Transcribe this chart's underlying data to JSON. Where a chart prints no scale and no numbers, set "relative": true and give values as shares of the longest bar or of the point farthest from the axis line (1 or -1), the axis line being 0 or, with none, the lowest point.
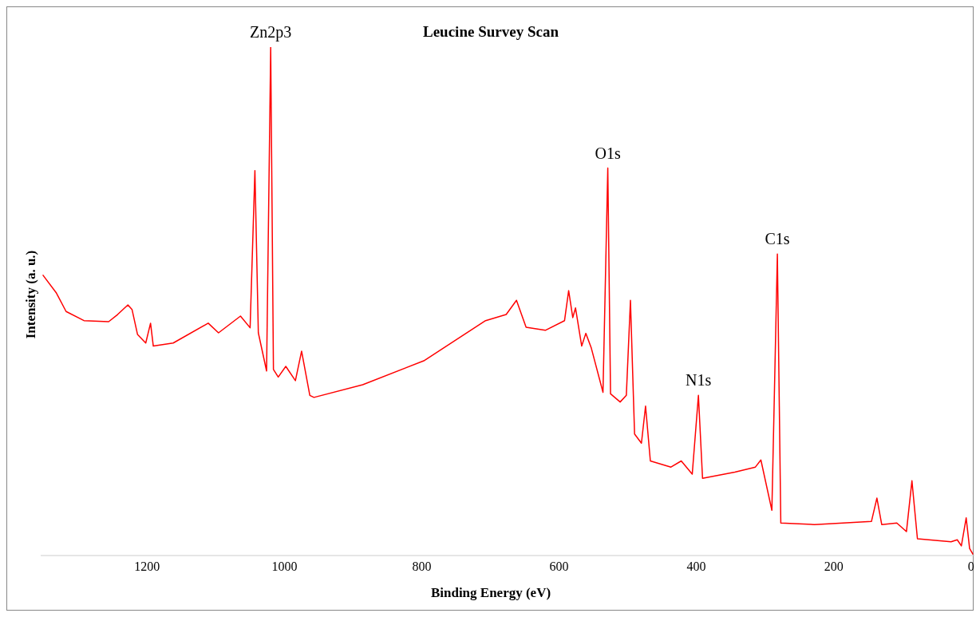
{
  "chart_data": {
    "type": "line",
    "title": "Leucine Survey Scan",
    "xlabel": "Binding Energy (eV)",
    "ylabel": "Intensity (a. u.)",
    "relative": true,
    "xlim": [
      1355,
      -5
    ],
    "xticks": [
      1200,
      1000,
      800,
      600,
      400,
      200,
      0
    ],
    "series": [
      {
        "color": "#ff0000",
        "x": [
          1352,
          1332,
          1318,
          1292,
          1256,
          1243,
          1228,
          1222,
          1214,
          1202,
          1195,
          1191,
          1162,
          1111,
          1096,
          1064,
          1050,
          1043,
          1038,
          1026,
          1020,
          1016,
          1009,
          998,
          984,
          975,
          963,
          957,
          886,
          797,
          707,
          677,
          662,
          648,
          620,
          592,
          586,
          580,
          576,
          567,
          561,
          553,
          536,
          529,
          525,
          511,
          502,
          496,
          490,
          480,
          474,
          467,
          437,
          422,
          406,
          397,
          391,
          344,
          314,
          306,
          290,
          282,
          277,
          228,
          145,
          137,
          130,
          108,
          94,
          86,
          78,
          29,
          20,
          14,
          7,
          2,
          -3
        ],
        "values": [
          0.552,
          0.516,
          0.48,
          0.462,
          0.46,
          0.474,
          0.493,
          0.484,
          0.435,
          0.418,
          0.457,
          0.412,
          0.418,
          0.457,
          0.438,
          0.471,
          0.448,
          0.757,
          0.438,
          0.363,
          1,
          0.366,
          0.351,
          0.372,
          0.344,
          0.402,
          0.315,
          0.311,
          0.336,
          0.383,
          0.462,
          0.474,
          0.502,
          0.449,
          0.443,
          0.462,
          0.521,
          0.468,
          0.487,
          0.412,
          0.437,
          0.408,
          0.321,
          0.762,
          0.318,
          0.302,
          0.315,
          0.502,
          0.239,
          0.221,
          0.294,
          0.186,
          0.174,
          0.186,
          0.16,
          0.315,
          0.152,
          0.164,
          0.174,
          0.188,
          0.089,
          0.593,
          0.064,
          0.061,
          0.067,
          0.113,
          0.061,
          0.064,
          0.047,
          0.147,
          0.033,
          0.027,
          0.031,
          0.019,
          0.074,
          0.014,
          0.002
        ]
      }
    ],
    "annotations": [
      {
        "text": "Zn2p3",
        "x": 1020,
        "y": 1
      },
      {
        "text": "O1s",
        "x": 529,
        "y": 0.762
      },
      {
        "text": "N1s",
        "x": 397,
        "y": 0.315
      },
      {
        "text": "C1s",
        "x": 282,
        "y": 0.593
      }
    ]
  }
}
